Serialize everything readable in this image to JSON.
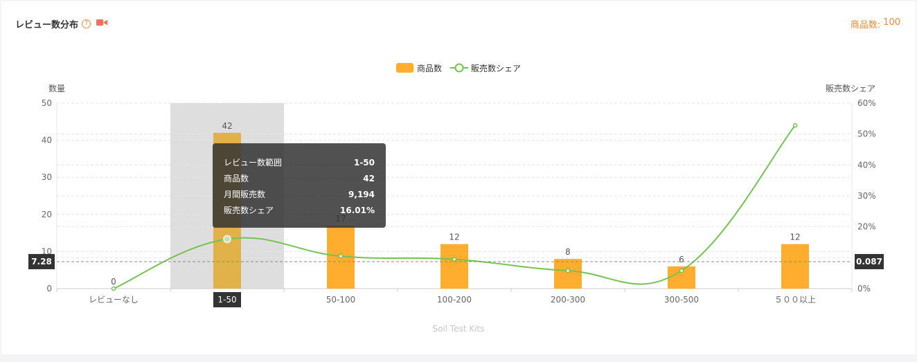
{
  "header": {
    "title": "レビュー数分布",
    "help_icon": "question-circle-icon",
    "video_icon": "video-camera-icon",
    "product_count_label": "商品数:",
    "product_count_value": "100"
  },
  "colors": {
    "bar": "#ffad2f",
    "bar_highlight": "#e2b24a",
    "line": "#73c44f",
    "accent": "#f08a30",
    "hover_band": "#dedede"
  },
  "chart_data": {
    "type": "bar",
    "title": "",
    "subtitle": "Soil Test Kits",
    "categories": [
      "レビューなし",
      "1-50",
      "50-100",
      "100-200",
      "200-300",
      "300-500",
      "５００以上"
    ],
    "series": [
      {
        "name": "商品数",
        "type": "bar",
        "axis": "left",
        "values": [
          0,
          42,
          17,
          12,
          8,
          6,
          12
        ]
      },
      {
        "name": "販売数シェア",
        "type": "line",
        "axis": "right",
        "values": [
          0.0,
          16.01,
          10.5,
          9.5,
          5.8,
          5.8,
          52.8
        ]
      }
    ],
    "ylabel_left": "数量",
    "ylabel_right": "販売数シェア",
    "ylim_left": [
      0,
      50
    ],
    "ylim_right": [
      0,
      60
    ],
    "yticks_left": [
      "0",
      "10",
      "20",
      "30",
      "40",
      "50"
    ],
    "yticks_right": [
      "0%",
      "10%",
      "20%",
      "30%",
      "40%",
      "50%",
      "60%"
    ],
    "legend_position": "top-center",
    "grid": true,
    "hover_category_index": 1,
    "crosshair_left_label": "7.28",
    "crosshair_right_label": "0.087",
    "crosshair_value_left": 7.28,
    "tooltip": [
      {
        "label": "レビュー数範囲",
        "value": "1-50"
      },
      {
        "label": "商品数",
        "value": "42"
      },
      {
        "label": "月間販売数",
        "value": "9,194"
      },
      {
        "label": "販売数シェア",
        "value": "16.01%"
      }
    ]
  }
}
